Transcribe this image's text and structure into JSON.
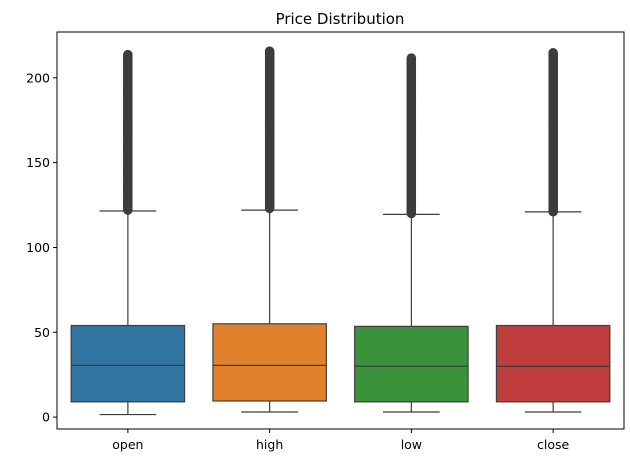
{
  "chart_data": {
    "type": "boxplot",
    "title": "Price Distribution",
    "xlabel": "",
    "ylabel": "",
    "ylim": [
      -7,
      227
    ],
    "y_ticks": [
      0,
      50,
      100,
      150,
      200
    ],
    "grid": false,
    "legend": "none",
    "categories": [
      "open",
      "high",
      "low",
      "close"
    ],
    "boxes": [
      {
        "name": "open",
        "color": "#3274a1",
        "whisker_low": 1.5,
        "q1": 9.0,
        "median": 30.5,
        "q3": 54.0,
        "whisker_high": 121.5,
        "outliers_min": 122,
        "outliers_max": 214
      },
      {
        "name": "high",
        "color": "#e1812c",
        "whisker_low": 3.0,
        "q1": 9.5,
        "median": 30.5,
        "q3": 55.0,
        "whisker_high": 122.0,
        "outliers_min": 123,
        "outliers_max": 216
      },
      {
        "name": "low",
        "color": "#3a923a",
        "whisker_low": 3.0,
        "q1": 9.0,
        "median": 30.0,
        "q3": 53.5,
        "whisker_high": 119.5,
        "outliers_min": 120,
        "outliers_max": 212
      },
      {
        "name": "close",
        "color": "#c03d3e",
        "whisker_low": 3.0,
        "q1": 9.0,
        "median": 30.0,
        "q3": 54.0,
        "whisker_high": 121.0,
        "outliers_min": 121,
        "outliers_max": 215
      }
    ],
    "line_color": "#3d3d3d"
  }
}
